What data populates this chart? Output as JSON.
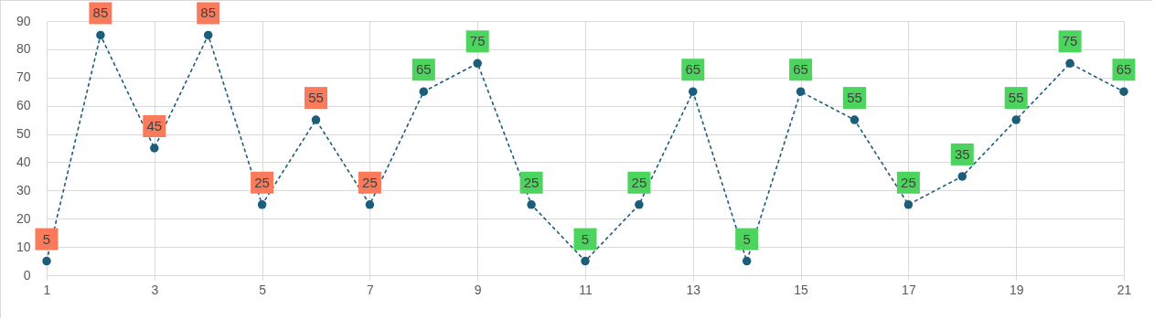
{
  "chart_data": {
    "type": "line",
    "x": [
      1,
      2,
      3,
      4,
      5,
      6,
      7,
      8,
      9,
      10,
      11,
      12,
      13,
      14,
      15,
      16,
      17,
      18,
      19,
      20,
      21
    ],
    "series": [
      {
        "color": "#1b5e7b",
        "values": [
          5,
          85,
          45,
          85,
          25,
          55,
          25,
          65,
          75,
          25,
          5,
          25,
          65,
          5,
          65,
          55,
          25,
          35,
          55,
          75,
          65
        ]
      }
    ],
    "xlim": [
      1,
      21
    ],
    "xticks": [
      1,
      3,
      5,
      7,
      9,
      11,
      13,
      15,
      17,
      19,
      21
    ],
    "ylim": [
      0,
      90
    ],
    "yticks": [
      0,
      10,
      20,
      30,
      40,
      50,
      60,
      70,
      80,
      90
    ],
    "grid": true,
    "marker": "circle",
    "line_style": "dashed",
    "data_labels": true
  }
}
